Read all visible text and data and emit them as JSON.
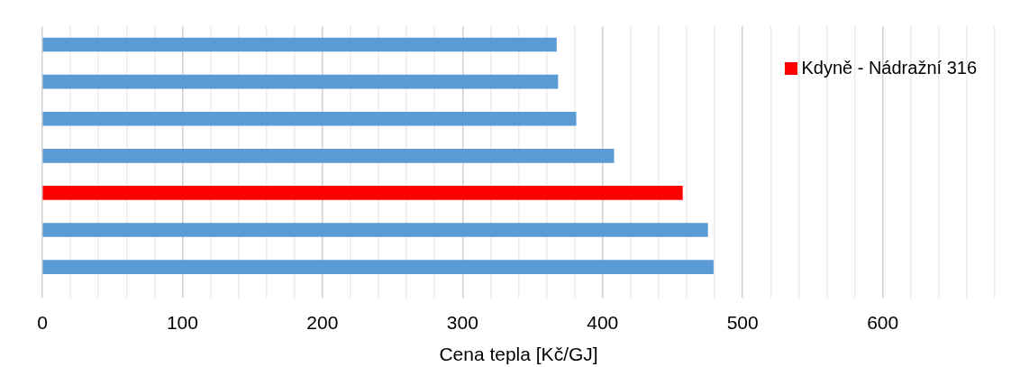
{
  "chart_data": {
    "type": "bar",
    "orientation": "horizontal",
    "xlabel": "Cena tepla [Kč/GJ]",
    "categories": [
      null,
      null,
      null,
      null,
      null,
      null,
      null
    ],
    "series": [
      {
        "color": "#5b9bd5",
        "values": [
          367,
          368,
          381,
          408,
          null,
          475,
          479
        ]
      },
      {
        "name": "Kdyně - Nádražní 316",
        "color": "#ff0000",
        "values": [
          null,
          null,
          null,
          null,
          457,
          null,
          null
        ]
      }
    ],
    "xlim": [
      0,
      680
    ],
    "xticks": [
      0,
      {
        "value": 20,
        "label": null
      },
      {
        "value": 40,
        "label": null
      },
      {
        "value": 60,
        "label": null
      },
      {
        "value": 80,
        "label": null
      },
      100,
      {
        "value": 120,
        "label": null
      },
      {
        "value": 140,
        "label": null
      },
      {
        "value": 160,
        "label": null
      },
      {
        "value": 180,
        "label": null
      },
      200,
      {
        "value": 220,
        "label": null
      },
      {
        "value": 240,
        "label": null
      },
      {
        "value": 260,
        "label": null
      },
      {
        "value": 280,
        "label": null
      },
      300,
      {
        "value": 320,
        "label": null
      },
      {
        "value": 340,
        "label": null
      },
      {
        "value": 360,
        "label": null
      },
      {
        "value": 380,
        "label": null
      },
      400,
      {
        "value": 420,
        "label": null
      },
      {
        "value": 440,
        "label": null
      },
      {
        "value": 460,
        "label": null
      },
      {
        "value": 480,
        "label": null
      },
      500,
      {
        "value": 520,
        "label": null
      },
      {
        "value": 540,
        "label": null
      },
      {
        "value": 560,
        "label": null
      },
      {
        "value": 580,
        "label": null
      },
      600,
      {
        "value": 620,
        "label": null
      },
      {
        "value": 640,
        "label": null
      },
      {
        "value": 660,
        "label": null
      },
      {
        "value": 680,
        "label": null
      }
    ],
    "grid": "x",
    "legend": "top right"
  }
}
